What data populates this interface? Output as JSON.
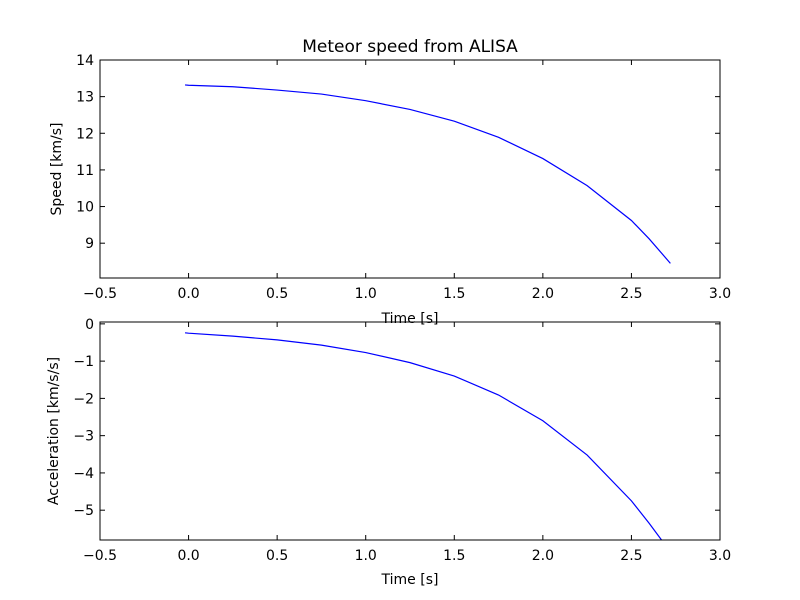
{
  "chart_data": [
    {
      "type": "line",
      "title": "Meteor speed from  ALISA",
      "xlabel": "Time [s]",
      "ylabel": "Speed [km/s]",
      "xlim": [
        -0.5,
        3.0
      ],
      "ylim": [
        8.05,
        14.0
      ],
      "x_ticks": [
        -0.5,
        0.0,
        0.5,
        1.0,
        1.5,
        2.0,
        2.5,
        3.0
      ],
      "x_tick_labels": [
        "−0.5",
        "0.0",
        "0.5",
        "1.0",
        "1.5",
        "2.0",
        "2.5",
        "3.0"
      ],
      "y_ticks": [
        9,
        10,
        11,
        12,
        13,
        14
      ],
      "y_tick_labels": [
        "9",
        "10",
        "11",
        "12",
        "13",
        "14"
      ],
      "grid": false,
      "color": "#0000ff",
      "series": [
        {
          "x": [
            -0.02,
            0.0,
            0.25,
            0.5,
            0.75,
            1.0,
            1.25,
            1.5,
            1.75,
            2.0,
            2.25,
            2.5,
            2.6,
            2.72
          ],
          "y": [
            13.32,
            13.31,
            13.27,
            13.18,
            13.07,
            12.89,
            12.65,
            12.33,
            11.89,
            11.31,
            10.57,
            9.62,
            9.12,
            8.45
          ]
        }
      ]
    },
    {
      "type": "line",
      "title": "",
      "xlabel": "Time [s]",
      "ylabel": "Acceleration [km/s/s]",
      "xlim": [
        -0.5,
        3.0
      ],
      "ylim": [
        -5.8,
        0.05
      ],
      "x_ticks": [
        -0.5,
        0.0,
        0.5,
        1.0,
        1.5,
        2.0,
        2.5,
        3.0
      ],
      "x_tick_labels": [
        "−0.5",
        "0.0",
        "0.5",
        "1.0",
        "1.5",
        "2.0",
        "2.5",
        "3.0"
      ],
      "y_ticks": [
        0,
        -1,
        -2,
        -3,
        -4,
        -5
      ],
      "y_tick_labels": [
        "0",
        "−1",
        "−2",
        "−3",
        "−4",
        "−5"
      ],
      "grid": false,
      "color": "#0000ff",
      "series": [
        {
          "x": [
            -0.02,
            0.0,
            0.25,
            0.5,
            0.75,
            1.0,
            1.25,
            1.5,
            1.75,
            2.0,
            2.25,
            2.5,
            2.6,
            2.67
          ],
          "y": [
            -0.24,
            -0.25,
            -0.33,
            -0.43,
            -0.57,
            -0.77,
            -1.04,
            -1.4,
            -1.91,
            -2.6,
            -3.52,
            -4.75,
            -5.35,
            -5.8
          ]
        }
      ]
    }
  ]
}
